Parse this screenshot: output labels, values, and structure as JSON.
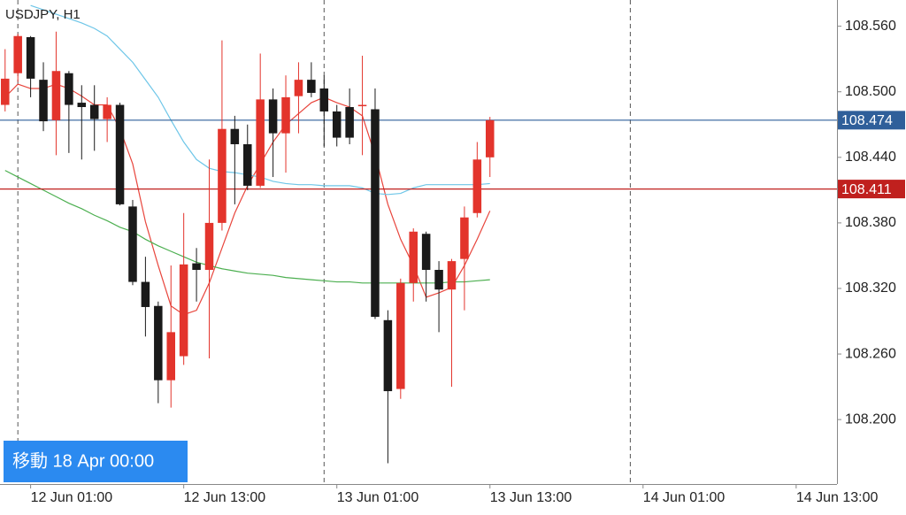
{
  "chart_data": {
    "type": "candlestick",
    "title": "USDJPY, H1",
    "x": [
      -1,
      0,
      1,
      2,
      3,
      4,
      5,
      6,
      7,
      8,
      9,
      10,
      11,
      12,
      13,
      14,
      15,
      16,
      17,
      18,
      19,
      20,
      21,
      22,
      23,
      24,
      25,
      26,
      27,
      28,
      29,
      30,
      31,
      32,
      33,
      34,
      35,
      36,
      37
    ],
    "open": [
      108.488,
      108.517,
      108.55,
      108.511,
      108.474,
      108.517,
      108.49,
      108.488,
      108.475,
      108.488,
      108.395,
      108.326,
      108.304,
      108.236,
      108.258,
      108.343,
      108.337,
      108.38,
      108.466,
      108.452,
      108.414,
      108.493,
      108.462,
      108.496,
      108.511,
      108.503,
      108.482,
      108.486,
      108.487,
      108.484,
      108.291,
      108.228,
      108.325,
      108.37,
      108.337,
      108.319,
      108.347,
      108.389,
      108.44
    ],
    "high": [
      108.539,
      108.553,
      108.551,
      108.527,
      108.555,
      108.519,
      108.506,
      108.506,
      108.495,
      108.49,
      108.401,
      108.349,
      108.308,
      108.341,
      108.389,
      108.357,
      108.438,
      108.547,
      108.478,
      108.47,
      108.535,
      108.503,
      108.515,
      108.527,
      108.527,
      108.515,
      108.488,
      108.503,
      108.533,
      108.503,
      108.3,
      108.329,
      108.375,
      108.372,
      108.345,
      108.347,
      108.395,
      108.454,
      108.477
    ],
    "low": [
      108.482,
      108.509,
      108.495,
      108.464,
      108.442,
      108.444,
      108.438,
      108.446,
      108.454,
      108.396,
      108.323,
      108.276,
      108.215,
      108.211,
      108.25,
      108.308,
      108.256,
      108.373,
      108.397,
      108.41,
      108.412,
      108.422,
      108.426,
      108.462,
      108.495,
      108.45,
      108.45,
      108.452,
      108.442,
      108.292,
      108.16,
      108.219,
      108.308,
      108.308,
      108.28,
      108.23,
      108.3,
      108.385,
      108.422
    ],
    "close": [
      108.512,
      108.551,
      108.512,
      108.473,
      108.519,
      108.488,
      108.486,
      108.475,
      108.488,
      108.397,
      108.326,
      108.303,
      108.236,
      108.28,
      108.342,
      108.337,
      108.38,
      108.466,
      108.452,
      108.414,
      108.493,
      108.462,
      108.495,
      108.511,
      108.499,
      108.482,
      108.458,
      108.458,
      108.488,
      108.294,
      108.226,
      108.325,
      108.372,
      108.337,
      108.319,
      108.345,
      108.385,
      108.438,
      108.474
    ],
    "up_color": "#e3342c",
    "down_color": "#1a1a1a",
    "moving_averages": [
      {
        "color": "#e8453c",
        "values": [
          108.495,
          108.507,
          108.503,
          108.503,
          108.507,
          108.503,
          108.496,
          108.488,
          108.488,
          108.466,
          108.434,
          108.381,
          108.341,
          108.304,
          108.296,
          108.3,
          108.325,
          108.357,
          108.389,
          108.414,
          108.434,
          108.454,
          108.47,
          108.48,
          108.49,
          108.495,
          108.49,
          108.486,
          108.478,
          108.442,
          108.397,
          108.365,
          108.341,
          108.312,
          108.316,
          108.321,
          108.341,
          108.365,
          108.391
        ]
      },
      {
        "color": "#6ec6e8",
        "values": [
          null,
          null,
          108.579,
          108.575,
          108.571,
          108.567,
          108.563,
          108.558,
          108.551,
          108.539,
          108.527,
          108.511,
          108.495,
          108.474,
          108.454,
          108.438,
          108.43,
          108.427,
          108.426,
          108.424,
          108.422,
          108.418,
          108.416,
          108.415,
          108.415,
          108.414,
          108.414,
          108.414,
          108.412,
          108.407,
          108.406,
          108.407,
          108.412,
          108.415,
          108.415,
          108.415,
          108.415,
          108.415,
          108.416
        ]
      },
      {
        "color": "#4caf50",
        "values": [
          108.428,
          108.422,
          108.416,
          108.41,
          108.404,
          108.398,
          108.393,
          108.387,
          108.382,
          108.376,
          108.372,
          108.365,
          108.359,
          108.354,
          108.349,
          108.344,
          108.341,
          108.338,
          108.336,
          108.334,
          108.333,
          108.332,
          108.33,
          108.329,
          108.328,
          108.327,
          108.326,
          108.326,
          108.325,
          108.325,
          108.325,
          108.325,
          108.325,
          108.325,
          108.325,
          108.326,
          108.326,
          108.327,
          108.328
        ]
      }
    ],
    "price_lines": [
      {
        "value": 108.474,
        "color": "#2f5f9a"
      },
      {
        "value": 108.411,
        "color": "#c0201e"
      }
    ],
    "day_separators": [
      0,
      24,
      48
    ],
    "xlim": [
      -1.4,
      64.2
    ],
    "xticks": [
      {
        "value": 1,
        "label": "12 Jun 01:00"
      },
      {
        "value": 13,
        "label": "12 Jun 13:00"
      },
      {
        "value": 25,
        "label": "13 Jun 01:00"
      },
      {
        "value": 37,
        "label": "13 Jun 13:00"
      },
      {
        "value": 49,
        "label": "14 Jun 01:00"
      },
      {
        "value": 61,
        "label": "14 Jun 13:00"
      }
    ],
    "ylim": [
      108.141,
      108.584
    ],
    "yticks": [
      {
        "value": 108.2,
        "label": "108.200"
      },
      {
        "value": 108.26,
        "label": "108.260"
      },
      {
        "value": 108.32,
        "label": "108.320"
      },
      {
        "value": 108.38,
        "label": "108.380"
      },
      {
        "value": 108.44,
        "label": "108.440"
      },
      {
        "value": 108.5,
        "label": "108.500"
      },
      {
        "value": 108.56,
        "label": "108.560"
      }
    ],
    "button": "移動 18 Apr 00:00"
  }
}
